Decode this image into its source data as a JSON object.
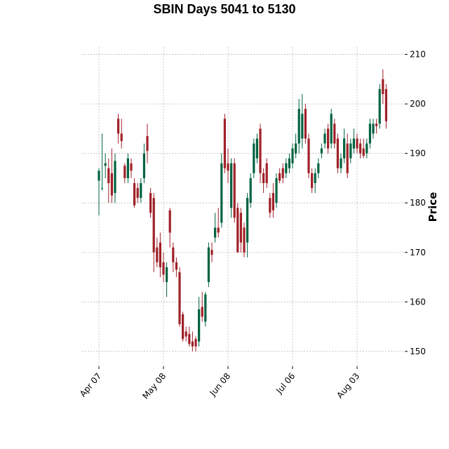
{
  "chart_data": {
    "type": "candlestick",
    "title": "SBIN Days 5041 to 5130",
    "y_label": "Price",
    "categories": [
      "Apr 07",
      null,
      null,
      null,
      null,
      null,
      null,
      null,
      null,
      null,
      null,
      null,
      null,
      null,
      null,
      null,
      null,
      null,
      null,
      null,
      "May 08",
      null,
      null,
      null,
      null,
      null,
      null,
      null,
      null,
      null,
      null,
      null,
      null,
      null,
      null,
      null,
      null,
      null,
      null,
      null,
      "Jun 08",
      null,
      null,
      null,
      null,
      null,
      null,
      null,
      null,
      null,
      null,
      null,
      null,
      null,
      null,
      null,
      null,
      null,
      null,
      null,
      "Jul 06",
      null,
      null,
      null,
      null,
      null,
      null,
      null,
      null,
      null,
      null,
      null,
      null,
      null,
      null,
      null,
      null,
      null,
      null,
      null,
      "Aug 03",
      null,
      null,
      null,
      null,
      null,
      null,
      null,
      null,
      null
    ],
    "open": [
      184.5,
      183,
      187.5,
      187,
      186,
      182,
      197,
      194,
      187.5,
      185,
      188,
      184,
      183,
      181,
      185,
      193.5,
      182,
      181,
      171,
      172,
      168,
      164,
      178.5,
      171,
      168,
      166,
      157.5,
      154,
      153.5,
      152,
      152.5,
      152,
      159,
      156,
      164,
      170.5,
      173,
      175,
      176,
      197,
      188,
      179,
      188,
      179,
      178,
      175,
      172,
      180,
      186,
      189,
      195,
      186,
      188,
      181,
      182,
      180,
      186,
      187,
      186,
      187,
      188,
      190,
      192,
      193,
      199,
      193,
      186,
      184,
      186,
      190,
      192,
      195,
      192,
      196,
      193,
      187,
      189,
      192,
      189,
      191,
      193,
      192,
      191,
      190,
      192,
      194,
      196,
      196,
      205,
      203
    ],
    "high": [
      187,
      194,
      190,
      189,
      191,
      190,
      198,
      197,
      188,
      190,
      189,
      185,
      184,
      185,
      192,
      196,
      183,
      182,
      173,
      174,
      170,
      168,
      179,
      172,
      169,
      167,
      158,
      155,
      155,
      154,
      153,
      161,
      162,
      162,
      172,
      172,
      178,
      179,
      190,
      198,
      191,
      189,
      189,
      180,
      179,
      176,
      182,
      186,
      193,
      194,
      196,
      187,
      189,
      182,
      184,
      186,
      187,
      188,
      189,
      190,
      192,
      194,
      201,
      202,
      200,
      194,
      187,
      187,
      189,
      192,
      195,
      196,
      199,
      197,
      194,
      190,
      195,
      194,
      193,
      195,
      194,
      193,
      193,
      193,
      197,
      197,
      197,
      204,
      207,
      204
    ],
    "low": [
      177.5,
      182.5,
      185,
      180,
      180,
      180,
      192,
      191,
      184,
      184,
      185,
      179,
      180,
      180,
      184,
      188,
      177,
      166,
      167,
      165,
      164,
      161,
      171,
      166,
      165,
      155,
      152,
      152,
      151,
      150,
      150,
      151,
      156,
      155,
      163,
      168,
      172,
      173,
      175,
      186,
      184,
      177,
      176,
      170,
      170,
      169,
      169,
      179,
      185,
      188,
      184,
      182,
      183,
      177,
      177,
      179,
      184,
      184,
      185,
      186,
      187,
      189,
      190,
      191,
      192,
      185,
      182,
      182,
      185,
      189,
      191,
      190,
      191,
      191,
      186,
      186,
      188,
      185,
      188,
      190,
      190,
      189,
      189,
      189,
      191,
      193,
      194,
      195,
      200,
      195
    ],
    "close": [
      186.5,
      183,
      188,
      184,
      181.5,
      188.5,
      194,
      192.5,
      185,
      189,
      186.5,
      179.5,
      181,
      184,
      190,
      190.5,
      178,
      170,
      168,
      167,
      165.5,
      167,
      174,
      168,
      166.5,
      155.5,
      152.5,
      153,
      151.5,
      151,
      151,
      158.5,
      157,
      161.5,
      171,
      169.5,
      175,
      174,
      188,
      187,
      186.5,
      188,
      177,
      170,
      172,
      170,
      181,
      185,
      192,
      193,
      186,
      184,
      184,
      178,
      178.5,
      185,
      184.5,
      185,
      188,
      189,
      191,
      192,
      199,
      198,
      193,
      186,
      183,
      186,
      188,
      191,
      194,
      191,
      198,
      192,
      187,
      189,
      193,
      186,
      192,
      193,
      191,
      190,
      189.5,
      192,
      196,
      196,
      195.5,
      203,
      202,
      196.5
    ],
    "up_color": "#006340",
    "down_color": "#a02128",
    "ylim": [
      147,
      211.5
    ],
    "yticks": [
      150,
      160,
      170,
      180,
      190,
      200,
      210
    ],
    "grid": true
  }
}
